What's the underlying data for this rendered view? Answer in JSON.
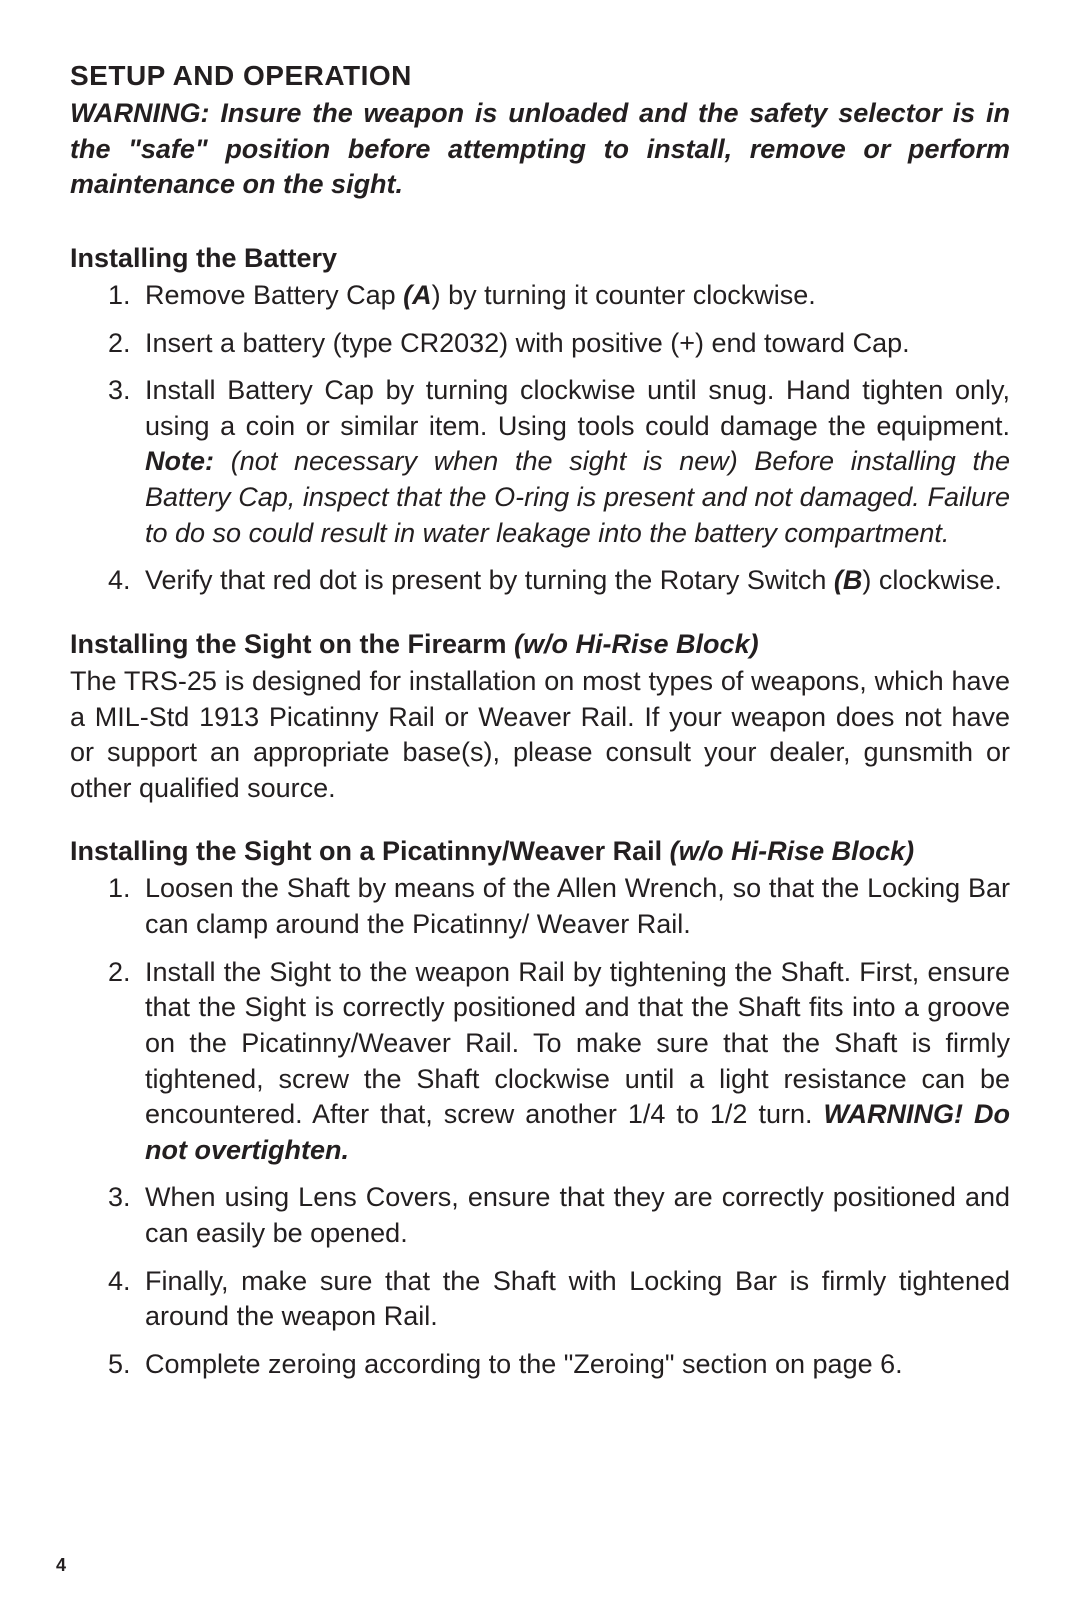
{
  "page_number": "4",
  "setup": {
    "title": "SETUP AND OPERATION",
    "warning": "WARNING: Insure the weapon is unloaded and the safety selector is in the \"safe\" position before attempting to install, remove or perform maintenance on the sight."
  },
  "battery": {
    "heading": "Installing the Battery",
    "steps": {
      "s1_pre": "Remove Battery Cap ",
      "s1_ref": "(A",
      "s1_post": ") by turning it counter clockwise.",
      "s2": "Insert a battery (type CR2032) with positive (+) end toward Cap.",
      "s3_a": "Install Battery Cap by turning clockwise until snug. Hand tighten only, using a coin or similar item. Using tools could damage the equipment. ",
      "s3_note_label": "Note:",
      "s3_note_body": " (not necessary when the sight is new) Before installing the Battery Cap, inspect that the O-ring is present and not damaged. Failure to do so could result in water leakage into the battery compartment.",
      "s4_pre": "Verify that red dot is present by turning the Rotary Switch ",
      "s4_ref": "(B",
      "s4_post": ") clockwise."
    }
  },
  "install_firearm": {
    "heading": "Installing the Sight on the Firearm ",
    "heading_paren": "(w/o Hi-Rise Block)",
    "body": "The TRS-25 is designed for installation on most types of weapons, which have a MIL-Std 1913 Picatinny Rail or Weaver Rail. If your weapon does not have or support an appropriate base(s), please consult your dealer, gunsmith or other qualified source."
  },
  "install_rail": {
    "heading": "Installing the Sight on a Picatinny/Weaver Rail ",
    "heading_paren": "(w/o Hi-Rise Block)",
    "steps": {
      "s1": "Loosen the Shaft by means of the Allen Wrench, so that the Locking Bar can clamp around the Picatinny/ Weaver Rail.",
      "s2_a": "Install the Sight to the weapon Rail by tightening the Shaft. First, ensure that the Sight is correctly positioned and that the Shaft fits into a groove on the Picatinny/Weaver Rail. To make sure that the Shaft is firmly tightened, screw the Shaft clockwise until a light resistance can be encountered. After that, screw another 1/4 to 1/2 turn. ",
      "s2_warn": "WARNING! Do not overtighten.",
      "s3": "When using Lens Covers, ensure that they are correctly positioned and can easily be opened.",
      "s4": "Finally, make sure that the Shaft with Locking Bar is firmly tightened around the weapon Rail.",
      "s5": "Complete zeroing according to the \"Zeroing\" section on page 6."
    }
  }
}
